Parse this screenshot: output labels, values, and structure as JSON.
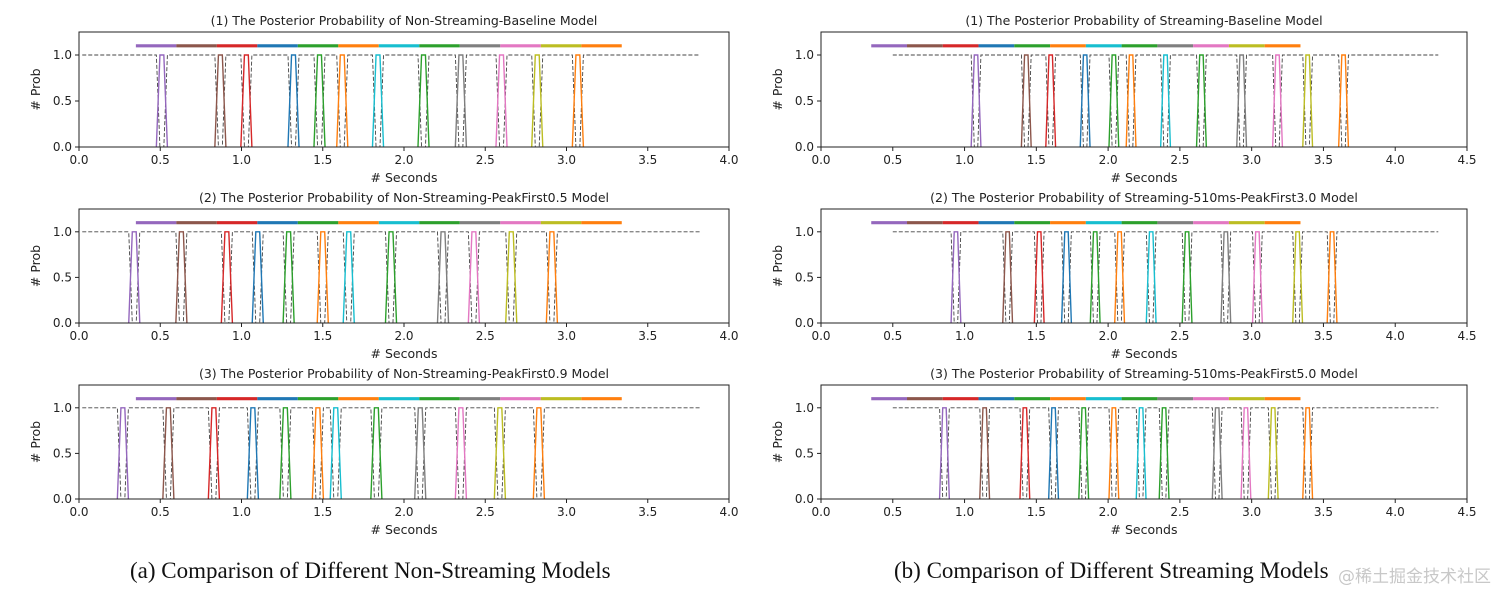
{
  "chart_data": [
    {
      "type": "line",
      "title": "(1) The Posterior Probability of Non-Streaming-Baseline Model",
      "xlabel": "# Seconds",
      "ylabel": "# Prob",
      "xlim": [
        0.0,
        4.0
      ],
      "ylim": [
        0.0,
        1.25
      ],
      "xticks": [
        "0.0",
        "0.5",
        "1.0",
        "1.5",
        "2.0",
        "2.5",
        "3.0",
        "3.5",
        "4.0"
      ],
      "yticks": [
        "0.0",
        "0.5",
        "1.0"
      ],
      "blank_span": [
        0.02,
        3.82
      ],
      "segment_range": [
        0.35,
        3.34
      ],
      "peaks": [
        0.51,
        0.87,
        1.03,
        1.32,
        1.48,
        1.62,
        1.84,
        2.12,
        2.35,
        2.6,
        2.82,
        3.07
      ]
    },
    {
      "type": "line",
      "title": "(2) The Posterior Probability of Non-Streaming-PeakFirst0.5 Model",
      "xlabel": "# Seconds",
      "ylabel": "# Prob",
      "xlim": [
        0.0,
        4.0
      ],
      "ylim": [
        0.0,
        1.25
      ],
      "xticks": [
        "0.0",
        "0.5",
        "1.0",
        "1.5",
        "2.0",
        "2.5",
        "3.0",
        "3.5",
        "4.0"
      ],
      "yticks": [
        "0.0",
        "0.5",
        "1.0"
      ],
      "blank_span": [
        0.02,
        3.82
      ],
      "segment_range": [
        0.35,
        3.34
      ],
      "peaks": [
        0.34,
        0.63,
        0.91,
        1.1,
        1.29,
        1.5,
        1.66,
        1.92,
        2.24,
        2.43,
        2.66,
        2.91
      ]
    },
    {
      "type": "line",
      "title": "(3) The Posterior Probability of Non-Streaming-PeakFirst0.9 Model",
      "xlabel": "# Seconds",
      "ylabel": "# Prob",
      "xlim": [
        0.0,
        4.0
      ],
      "ylim": [
        0.0,
        1.25
      ],
      "xticks": [
        "0.0",
        "0.5",
        "1.0",
        "1.5",
        "2.0",
        "2.5",
        "3.0",
        "3.5",
        "4.0"
      ],
      "yticks": [
        "0.0",
        "0.5",
        "1.0"
      ],
      "blank_span": [
        0.02,
        3.82
      ],
      "segment_range": [
        0.35,
        3.34
      ],
      "peaks": [
        0.27,
        0.55,
        0.83,
        1.07,
        1.27,
        1.47,
        1.58,
        1.83,
        2.1,
        2.35,
        2.59,
        2.83
      ]
    },
    {
      "type": "line",
      "title": "(1) The Posterior Probability of Streaming-Baseline Model",
      "xlabel": "# Seconds",
      "ylabel": "# Prob",
      "xlim": [
        0.0,
        4.5
      ],
      "ylim": [
        0.0,
        1.25
      ],
      "xticks": [
        "0.0",
        "0.5",
        "1.0",
        "1.5",
        "2.0",
        "2.5",
        "3.0",
        "3.5",
        "4.0",
        "4.5"
      ],
      "yticks": [
        "0.0",
        "0.5",
        "1.0"
      ],
      "blank_span": [
        0.5,
        4.3
      ],
      "segment_range": [
        0.35,
        3.34
      ],
      "peaks": [
        1.08,
        1.43,
        1.6,
        1.84,
        2.04,
        2.16,
        2.4,
        2.65,
        2.93,
        3.18,
        3.39,
        3.64
      ]
    },
    {
      "type": "line",
      "title": "(2) The Posterior Probability of Streaming-510ms-PeakFirst3.0 Model",
      "xlabel": "# Seconds",
      "ylabel": "# Prob",
      "xlim": [
        0.0,
        4.5
      ],
      "ylim": [
        0.0,
        1.25
      ],
      "xticks": [
        "0.0",
        "0.5",
        "1.0",
        "1.5",
        "2.0",
        "2.5",
        "3.0",
        "3.5",
        "4.0",
        "4.5"
      ],
      "yticks": [
        "0.0",
        "0.5",
        "1.0"
      ],
      "blank_span": [
        0.5,
        4.3
      ],
      "segment_range": [
        0.35,
        3.34
      ],
      "peaks": [
        0.94,
        1.3,
        1.52,
        1.71,
        1.91,
        2.08,
        2.3,
        2.55,
        2.82,
        3.04,
        3.32,
        3.56
      ]
    },
    {
      "type": "line",
      "title": "(3) The Posterior Probability of Streaming-510ms-PeakFirst5.0 Model",
      "xlabel": "# Seconds",
      "ylabel": "# Prob",
      "xlim": [
        0.0,
        4.5
      ],
      "ylim": [
        0.0,
        1.25
      ],
      "xticks": [
        "0.0",
        "0.5",
        "1.0",
        "1.5",
        "2.0",
        "2.5",
        "3.0",
        "3.5",
        "4.0",
        "4.5"
      ],
      "yticks": [
        "0.0",
        "0.5",
        "1.0"
      ],
      "blank_span": [
        0.5,
        4.3
      ],
      "segment_range": [
        0.35,
        3.34
      ],
      "peaks": [
        0.86,
        1.14,
        1.42,
        1.62,
        1.83,
        2.04,
        2.23,
        2.39,
        2.76,
        2.96,
        3.15,
        3.39
      ]
    }
  ],
  "segment_colors": [
    "#9467bd",
    "#8c564b",
    "#d62728",
    "#1f77b4",
    "#2ca02c",
    "#ff7f0e",
    "#17becf",
    "#2ca02c",
    "#7f7f7f",
    "#e377c2",
    "#bcbd22",
    "#ff7f0e"
  ],
  "captions": {
    "left": "(a)  Comparison of Different Non-Streaming Models",
    "right": "(b)  Comparison of Different Streaming Models"
  },
  "watermark": "@稀土掘金技术社区"
}
